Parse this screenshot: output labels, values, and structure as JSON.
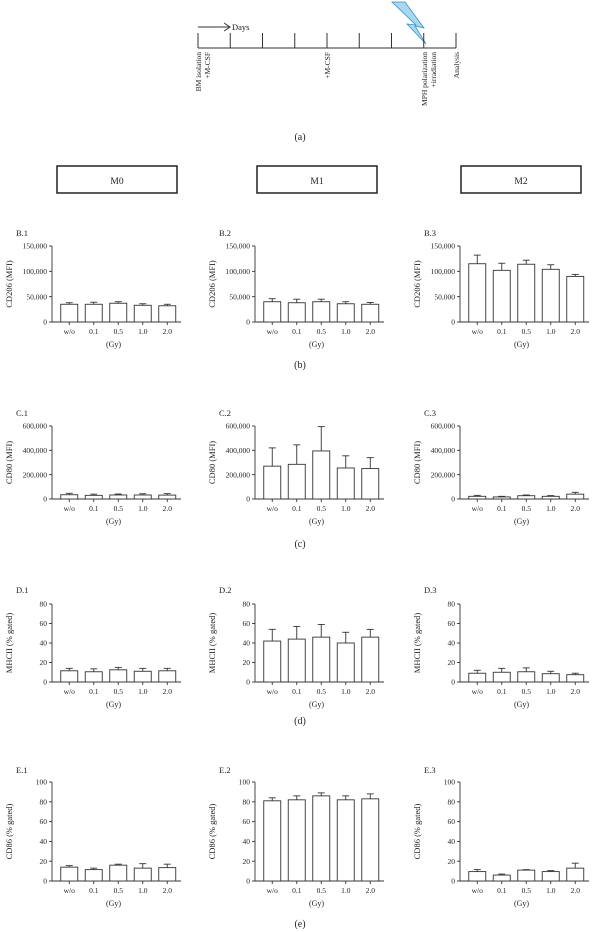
{
  "timeline": {
    "days_label": "Days",
    "events": [
      {
        "label": "BM isolation",
        "label2": "+M-CSF",
        "tick": 0
      },
      {
        "label": "+M-CSF",
        "label2": "",
        "tick": 4
      },
      {
        "label": "MPH polarization",
        "label2": "+irradiation",
        "tick": 7
      },
      {
        "label": "Analysis",
        "label2": "",
        "tick": 8
      }
    ],
    "caption": "(a)"
  },
  "headers": [
    "M0",
    "M1",
    "M2"
  ],
  "row_captions": [
    "(b)",
    "(c)",
    "(d)",
    "(e)"
  ],
  "chart_data": [
    {
      "id": "B.1",
      "type": "bar",
      "panel_label": "B.1",
      "ylabel": "CD206 (MFI)",
      "xlabel": "(Gy)",
      "categories": [
        "w/o",
        "0.1",
        "0.5",
        "1.0",
        "2.0"
      ],
      "ylim": [
        0,
        150000
      ],
      "yticks": [
        "0",
        "50,000",
        "100,000",
        "150,000"
      ],
      "values": [
        35000,
        35000,
        37000,
        33000,
        32000
      ],
      "errors": [
        3000,
        4000,
        3000,
        3000,
        3000
      ]
    },
    {
      "id": "B.2",
      "type": "bar",
      "panel_label": "B.2",
      "ylabel": "CD206 (MFI)",
      "xlabel": "(Gy)",
      "categories": [
        "w/o",
        "0.1",
        "0.5",
        "1.0",
        "2.0"
      ],
      "ylim": [
        0,
        150000
      ],
      "yticks": [
        "0",
        "50,000",
        "100,000",
        "150,000"
      ],
      "values": [
        40000,
        38000,
        40000,
        36000,
        35000
      ],
      "errors": [
        6000,
        7000,
        5000,
        4000,
        3500
      ]
    },
    {
      "id": "B.3",
      "type": "bar",
      "panel_label": "B.3",
      "ylabel": "CD206 (MFI)",
      "xlabel": "(Gy)",
      "categories": [
        "w/o",
        "0.1",
        "0.5",
        "1.0",
        "2.0"
      ],
      "ylim": [
        0,
        150000
      ],
      "yticks": [
        "0",
        "50,000",
        "100,000",
        "150,000"
      ],
      "values": [
        115000,
        102000,
        114000,
        104000,
        90000
      ],
      "errors": [
        17000,
        14000,
        8000,
        9000,
        4000
      ]
    },
    {
      "id": "C.1",
      "type": "bar",
      "panel_label": "C.1",
      "ylabel": "CD80 (MFI)",
      "xlabel": "(Gy)",
      "categories": [
        "w/o",
        "0.1",
        "0.5",
        "1.0",
        "2.0"
      ],
      "ylim": [
        0,
        600000
      ],
      "yticks": [
        "0",
        "200,000",
        "400,000",
        "600,000"
      ],
      "values": [
        35000,
        30000,
        33000,
        33000,
        32000
      ],
      "errors": [
        12000,
        10000,
        8000,
        10000,
        12000
      ]
    },
    {
      "id": "C.2",
      "type": "bar",
      "panel_label": "C.2",
      "ylabel": "CD80 (MFI)",
      "xlabel": "(Gy)",
      "categories": [
        "w/o",
        "0.1",
        "0.5",
        "1.0",
        "2.0"
      ],
      "ylim": [
        0,
        600000
      ],
      "yticks": [
        "0",
        "200,000",
        "400,000",
        "600,000"
      ],
      "values": [
        270000,
        285000,
        395000,
        255000,
        250000
      ],
      "errors": [
        150000,
        160000,
        200000,
        100000,
        90000
      ]
    },
    {
      "id": "C.3",
      "type": "bar",
      "panel_label": "C.3",
      "ylabel": "CD80 (MFI)",
      "xlabel": "(Gy)",
      "categories": [
        "w/o",
        "0.1",
        "0.5",
        "1.0",
        "2.0"
      ],
      "ylim": [
        0,
        600000
      ],
      "yticks": [
        "0",
        "200,000",
        "400,000",
        "600,000"
      ],
      "values": [
        22000,
        17000,
        27000,
        22000,
        40000
      ],
      "errors": [
        8000,
        5000,
        6000,
        6000,
        15000
      ]
    },
    {
      "id": "D.1",
      "type": "bar",
      "panel_label": "D.1",
      "ylabel": "MHCII (% gated)",
      "xlabel": "(Gy)",
      "categories": [
        "w/o",
        "0.1",
        "0.5",
        "1.0",
        "2.0"
      ],
      "ylim": [
        0,
        80
      ],
      "yticks": [
        "0",
        "20",
        "40",
        "60",
        "80"
      ],
      "values": [
        11.5,
        10.5,
        12.5,
        11,
        11.5
      ],
      "errors": [
        2.5,
        3,
        2.5,
        3,
        2.5
      ]
    },
    {
      "id": "D.2",
      "type": "bar",
      "panel_label": "D.2",
      "ylabel": "MHCII (% gated)",
      "xlabel": "(Gy)",
      "categories": [
        "w/o",
        "0.1",
        "0.5",
        "1.0",
        "2.0"
      ],
      "ylim": [
        0,
        80
      ],
      "yticks": [
        "0",
        "20",
        "40",
        "60",
        "80"
      ],
      "values": [
        42,
        44,
        46,
        40,
        46
      ],
      "errors": [
        12,
        13,
        13,
        11,
        8
      ]
    },
    {
      "id": "D.3",
      "type": "bar",
      "panel_label": "D.3",
      "ylabel": "MHCII (% gated)",
      "xlabel": "(Gy)",
      "categories": [
        "w/o",
        "0.1",
        "0.5",
        "1.0",
        "2.0"
      ],
      "ylim": [
        0,
        80
      ],
      "yticks": [
        "0",
        "20",
        "40",
        "60",
        "80"
      ],
      "values": [
        9,
        10,
        10.5,
        8.5,
        7.5
      ],
      "errors": [
        3,
        4,
        4,
        2.5,
        1.5
      ]
    },
    {
      "id": "E.1",
      "type": "bar",
      "panel_label": "E.1",
      "ylabel": "CD86 (% gated)",
      "xlabel": "(Gy)",
      "categories": [
        "w/o",
        "0.1",
        "0.5",
        "1.0",
        "2.0"
      ],
      "ylim": [
        0,
        100
      ],
      "yticks": [
        "0",
        "20",
        "40",
        "60",
        "80",
        "100"
      ],
      "values": [
        14,
        11.5,
        16,
        13,
        13.5
      ],
      "errors": [
        1.5,
        1.5,
        1,
        4.5,
        3.5
      ]
    },
    {
      "id": "E.2",
      "type": "bar",
      "panel_label": "E.2",
      "ylabel": "CD86 (% gated)",
      "xlabel": "(Gy)",
      "categories": [
        "w/o",
        "0.1",
        "0.5",
        "1.0",
        "2.0"
      ],
      "ylim": [
        0,
        100
      ],
      "yticks": [
        "0",
        "20",
        "40",
        "60",
        "80",
        "100"
      ],
      "values": [
        81,
        82,
        86,
        82,
        83
      ],
      "errors": [
        3,
        4,
        3,
        4,
        5
      ]
    },
    {
      "id": "E.3",
      "type": "bar",
      "panel_label": "E.3",
      "ylabel": "CD86 (% gated)",
      "xlabel": "(Gy)",
      "categories": [
        "w/o",
        "0.1",
        "0.5",
        "1.0",
        "2.0"
      ],
      "ylim": [
        0,
        100
      ],
      "yticks": [
        "0",
        "20",
        "40",
        "60",
        "80",
        "100"
      ],
      "values": [
        9.5,
        6,
        11,
        9.5,
        13
      ],
      "errors": [
        2,
        1,
        0.5,
        1,
        5
      ]
    }
  ]
}
